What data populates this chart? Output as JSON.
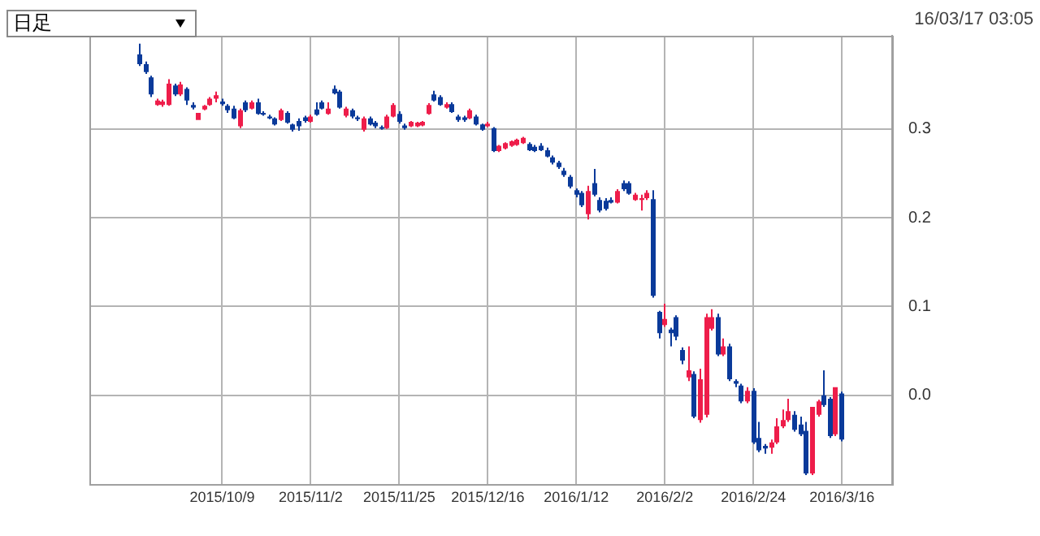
{
  "chart_data": {
    "type": "candlestick",
    "annotations": [
      "日足",
      "16/03/17 03:05"
    ],
    "categories": [
      null,
      null,
      null,
      null,
      null,
      null,
      null,
      null,
      null,
      null,
      null,
      null,
      null,
      null,
      "2015/10/9",
      null,
      null,
      null,
      null,
      null,
      null,
      null,
      null,
      null,
      null,
      null,
      null,
      null,
      null,
      "2015/11/2",
      null,
      null,
      null,
      null,
      null,
      null,
      null,
      null,
      null,
      null,
      null,
      null,
      null,
      null,
      "2015/11/25",
      null,
      null,
      null,
      null,
      null,
      null,
      null,
      null,
      null,
      null,
      null,
      null,
      null,
      null,
      "2015/12/16",
      null,
      null,
      null,
      null,
      null,
      null,
      null,
      null,
      null,
      null,
      null,
      null,
      null,
      null,
      "2016/1/12",
      null,
      null,
      null,
      null,
      null,
      null,
      null,
      null,
      null,
      null,
      null,
      null,
      null,
      null,
      "2016/2/2",
      null,
      null,
      null,
      null,
      null,
      null,
      null,
      null,
      null,
      null,
      null,
      null,
      null,
      null,
      "2016/2/24",
      null,
      null,
      null,
      null,
      null,
      null,
      null,
      null,
      null,
      null,
      null,
      null,
      null,
      null,
      "2016/3/16"
    ],
    "ohlc": [
      [
        0.384,
        0.396,
        0.371,
        0.373
      ],
      [
        0.373,
        0.376,
        0.362,
        0.364
      ],
      [
        0.358,
        0.36,
        0.336,
        0.339
      ],
      [
        0.327,
        0.334,
        0.326,
        0.332
      ],
      [
        0.327,
        0.333,
        0.325,
        0.331
      ],
      [
        0.327,
        0.356,
        0.326,
        0.351
      ],
      [
        0.349,
        0.351,
        0.337,
        0.339
      ],
      [
        0.339,
        0.353,
        0.337,
        0.35
      ],
      [
        0.345,
        0.347,
        0.327,
        0.332
      ],
      [
        0.327,
        0.33,
        0.322,
        0.324
      ],
      [
        0.31,
        0.318,
        0.31,
        0.318
      ],
      [
        0.322,
        0.327,
        0.321,
        0.326
      ],
      [
        0.327,
        0.336,
        0.326,
        0.334
      ],
      [
        0.334,
        0.342,
        0.33,
        0.338
      ],
      [
        0.331,
        0.334,
        0.326,
        0.328
      ],
      [
        0.326,
        0.328,
        0.318,
        0.321
      ],
      [
        0.323,
        0.326,
        0.311,
        0.312
      ],
      [
        0.303,
        0.323,
        0.301,
        0.321
      ],
      [
        0.33,
        0.332,
        0.319,
        0.321
      ],
      [
        0.323,
        0.332,
        0.322,
        0.33
      ],
      [
        0.33,
        0.334,
        0.316,
        0.317
      ],
      [
        0.318,
        0.32,
        0.315,
        0.316
      ],
      [
        0.314,
        0.316,
        0.311,
        0.312
      ],
      [
        0.312,
        0.313,
        0.304,
        0.305
      ],
      [
        0.31,
        0.323,
        0.309,
        0.321
      ],
      [
        0.318,
        0.32,
        0.306,
        0.307
      ],
      [
        0.305,
        0.306,
        0.297,
        0.299
      ],
      [
        0.309,
        0.312,
        0.298,
        0.303
      ],
      [
        0.313,
        0.315,
        0.307,
        0.309
      ],
      [
        0.308,
        0.316,
        0.307,
        0.314
      ],
      [
        0.322,
        0.33,
        0.315,
        0.316
      ],
      [
        0.33,
        0.332,
        0.322,
        0.323
      ],
      [
        0.317,
        0.33,
        0.316,
        0.323
      ],
      [
        0.345,
        0.349,
        0.339,
        0.34
      ],
      [
        0.342,
        0.344,
        0.323,
        0.324
      ],
      [
        0.315,
        0.325,
        0.313,
        0.323
      ],
      [
        0.321,
        0.323,
        0.312,
        0.314
      ],
      [
        0.313,
        0.315,
        0.309,
        0.311
      ],
      [
        0.299,
        0.314,
        0.297,
        0.312
      ],
      [
        0.312,
        0.314,
        0.304,
        0.305
      ],
      [
        0.307,
        0.309,
        0.301,
        0.303
      ],
      [
        0.302,
        0.304,
        0.299,
        0.301
      ],
      [
        0.301,
        0.316,
        0.3,
        0.314
      ],
      [
        0.314,
        0.329,
        0.313,
        0.327
      ],
      [
        0.317,
        0.32,
        0.306,
        0.308
      ],
      [
        0.304,
        0.306,
        0.299,
        0.301
      ],
      [
        0.303,
        0.309,
        0.302,
        0.308
      ],
      [
        0.303,
        0.308,
        0.302,
        0.307
      ],
      [
        0.304,
        0.309,
        0.303,
        0.308
      ],
      [
        0.317,
        0.329,
        0.316,
        0.327
      ],
      [
        0.339,
        0.343,
        0.331,
        0.332
      ],
      [
        0.336,
        0.338,
        0.326,
        0.327
      ],
      [
        0.324,
        0.33,
        0.323,
        0.328
      ],
      [
        0.328,
        0.33,
        0.318,
        0.319
      ],
      [
        0.314,
        0.316,
        0.308,
        0.31
      ],
      [
        0.313,
        0.315,
        0.308,
        0.31
      ],
      [
        0.312,
        0.323,
        0.311,
        0.321
      ],
      [
        0.314,
        0.316,
        0.304,
        0.305
      ],
      [
        0.305,
        0.306,
        0.298,
        0.299
      ],
      [
        0.303,
        0.308,
        0.302,
        0.306
      ],
      [
        0.301,
        0.302,
        0.274,
        0.275
      ],
      [
        0.275,
        0.282,
        0.274,
        0.281
      ],
      [
        0.278,
        0.285,
        0.277,
        0.284
      ],
      [
        0.281,
        0.287,
        0.28,
        0.286
      ],
      [
        0.282,
        0.289,
        0.281,
        0.288
      ],
      [
        0.284,
        0.291,
        0.283,
        0.29
      ],
      [
        0.283,
        0.285,
        0.275,
        0.276
      ],
      [
        0.28,
        0.282,
        0.274,
        0.275
      ],
      [
        0.281,
        0.284,
        0.275,
        0.276
      ],
      [
        0.276,
        0.279,
        0.268,
        0.269
      ],
      [
        0.268,
        0.27,
        0.26,
        0.262
      ],
      [
        0.262,
        0.264,
        0.255,
        0.257
      ],
      [
        0.253,
        0.256,
        0.246,
        0.248
      ],
      [
        0.246,
        0.248,
        0.233,
        0.235
      ],
      [
        0.231,
        0.233,
        0.223,
        0.226
      ],
      [
        0.228,
        0.23,
        0.212,
        0.214
      ],
      [
        0.204,
        0.236,
        0.198,
        0.23
      ],
      [
        0.239,
        0.255,
        0.224,
        0.226
      ],
      [
        0.22,
        0.223,
        0.206,
        0.208
      ],
      [
        0.219,
        0.222,
        0.208,
        0.21
      ],
      [
        0.22,
        0.223,
        0.216,
        0.217
      ],
      [
        0.217,
        0.232,
        0.216,
        0.23
      ],
      [
        0.239,
        0.242,
        0.23,
        0.232
      ],
      [
        0.239,
        0.241,
        0.226,
        0.227
      ],
      [
        0.22,
        0.228,
        0.219,
        0.226
      ],
      [
        0.22,
        0.226,
        0.208,
        0.222
      ],
      [
        0.222,
        0.231,
        0.22,
        0.228
      ],
      [
        0.221,
        0.231,
        0.11,
        0.112
      ],
      [
        0.094,
        0.095,
        0.064,
        0.07
      ],
      [
        0.079,
        0.103,
        0.077,
        0.086
      ],
      [
        0.074,
        0.076,
        0.055,
        0.07
      ],
      [
        0.088,
        0.09,
        0.062,
        0.066
      ],
      [
        0.051,
        0.054,
        0.035,
        0.039
      ],
      [
        0.02,
        0.055,
        0.016,
        0.028
      ],
      [
        0.024,
        0.027,
        -0.026,
        -0.024
      ],
      [
        -0.028,
        0.03,
        -0.031,
        0.018
      ],
      [
        -0.022,
        0.092,
        -0.025,
        0.088
      ],
      [
        0.075,
        0.097,
        0.073,
        0.088
      ],
      [
        0.088,
        0.092,
        0.044,
        0.046
      ],
      [
        0.046,
        0.064,
        0.044,
        0.055
      ],
      [
        0.055,
        0.058,
        0.016,
        0.018
      ],
      [
        0.016,
        0.018,
        0.009,
        0.013
      ],
      [
        0.011,
        0.013,
        -0.009,
        -0.007
      ],
      [
        -0.007,
        0.009,
        -0.009,
        0.005
      ],
      [
        0.005,
        0.008,
        -0.055,
        -0.053
      ],
      [
        -0.048,
        -0.03,
        -0.064,
        -0.062
      ],
      [
        -0.057,
        -0.055,
        -0.066,
        -0.06
      ],
      [
        -0.059,
        -0.05,
        -0.066,
        -0.053
      ],
      [
        -0.053,
        -0.026,
        -0.055,
        -0.035
      ],
      [
        -0.035,
        -0.016,
        -0.037,
        -0.028
      ],
      [
        -0.028,
        -0.004,
        -0.03,
        -0.018
      ],
      [
        -0.022,
        -0.018,
        -0.041,
        -0.039
      ],
      [
        -0.033,
        -0.024,
        -0.046,
        -0.044
      ],
      [
        -0.04,
        -0.03,
        -0.09,
        -0.088
      ],
      [
        -0.088,
        -0.013,
        -0.09,
        -0.013
      ],
      [
        -0.022,
        -0.005,
        -0.024,
        -0.007
      ],
      [
        0.0,
        0.028,
        -0.013,
        -0.011
      ],
      [
        -0.004,
        -0.002,
        -0.048,
        -0.046
      ],
      [
        -0.044,
        0.009,
        -0.046,
        0.009
      ],
      [
        0.002,
        0.004,
        -0.052,
        -0.05
      ]
    ],
    "colors": [
      "#0a3a9a",
      "#0a3a9a",
      "#0a3a9a",
      "#ee1d4a",
      "#ee1d4a",
      "#ee1d4a",
      "#0a3a9a",
      "#ee1d4a",
      "#0a3a9a",
      "#0a3a9a",
      "#ee1d4a",
      "#ee1d4a",
      "#ee1d4a",
      "#ee1d4a",
      "#0a3a9a",
      "#0a3a9a",
      "#0a3a9a",
      "#ee1d4a",
      "#0a3a9a",
      "#ee1d4a",
      "#0a3a9a",
      "#0a3a9a",
      "#0a3a9a",
      "#0a3a9a",
      "#ee1d4a",
      "#0a3a9a",
      "#0a3a9a",
      "#0a3a9a",
      "#0a3a9a",
      "#ee1d4a",
      "#0a3a9a",
      "#0a3a9a",
      "#ee1d4a",
      "#0a3a9a",
      "#0a3a9a",
      "#ee1d4a",
      "#0a3a9a",
      "#0a3a9a",
      "#ee1d4a",
      "#0a3a9a",
      "#0a3a9a",
      "#0a3a9a",
      "#ee1d4a",
      "#ee1d4a",
      "#0a3a9a",
      "#0a3a9a",
      "#ee1d4a",
      "#ee1d4a",
      "#ee1d4a",
      "#ee1d4a",
      "#0a3a9a",
      "#0a3a9a",
      "#ee1d4a",
      "#0a3a9a",
      "#0a3a9a",
      "#0a3a9a",
      "#ee1d4a",
      "#0a3a9a",
      "#0a3a9a",
      "#ee1d4a",
      "#0a3a9a",
      "#ee1d4a",
      "#ee1d4a",
      "#ee1d4a",
      "#ee1d4a",
      "#ee1d4a",
      "#0a3a9a",
      "#0a3a9a",
      "#0a3a9a",
      "#0a3a9a",
      "#0a3a9a",
      "#0a3a9a",
      "#0a3a9a",
      "#0a3a9a",
      "#0a3a9a",
      "#0a3a9a",
      "#ee1d4a",
      "#0a3a9a",
      "#0a3a9a",
      "#0a3a9a",
      "#0a3a9a",
      "#ee1d4a",
      "#0a3a9a",
      "#0a3a9a",
      "#ee1d4a",
      "#ee1d4a",
      "#ee1d4a",
      "#0a3a9a",
      "#0a3a9a",
      "#ee1d4a",
      "#0a3a9a",
      "#0a3a9a",
      "#0a3a9a",
      "#ee1d4a",
      "#0a3a9a",
      "#ee1d4a",
      "#ee1d4a",
      "#ee1d4a",
      "#0a3a9a",
      "#ee1d4a",
      "#0a3a9a",
      "#0a3a9a",
      "#0a3a9a",
      "#ee1d4a",
      "#0a3a9a",
      "#0a3a9a",
      "#0a3a9a",
      "#ee1d4a",
      "#ee1d4a",
      "#ee1d4a",
      "#ee1d4a",
      "#0a3a9a",
      "#0a3a9a",
      "#0a3a9a",
      "#ee1d4a",
      "#ee1d4a",
      "#0a3a9a",
      "#0a3a9a",
      "#ee1d4a",
      "#0a3a9a"
    ],
    "ylim": [
      -0.1,
      0.405
    ],
    "yticks": [
      {
        "value": 0,
        "label": "0.0"
      },
      {
        "value": 0.1,
        "label": "0.1"
      },
      {
        "value": 0.2,
        "label": "0.2"
      },
      {
        "value": 0.3,
        "label": "0.3"
      }
    ],
    "grid": true,
    "legend": false
  }
}
